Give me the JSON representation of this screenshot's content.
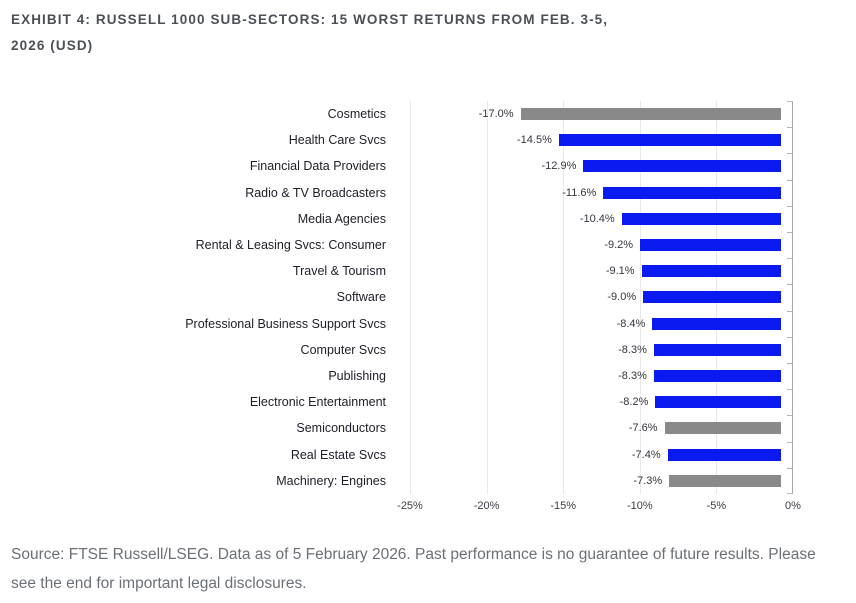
{
  "title": {
    "line1": "EXHIBIT 4: RUSSELL 1000 SUB-SECTORS: 15 WORST RETURNS FROM FEB. 3-5,",
    "line2": "2026 (USD)"
  },
  "source_note": "Source: FTSE Russell/LSEG. Data as of 5 February 2026. Past performance is no guarantee of future results. Please see the end for important legal disclosures.",
  "chart_data": {
    "type": "bar",
    "orientation": "horizontal",
    "title": "EXHIBIT 4: RUSSELL 1000 SUB-SECTORS: 15 WORST RETURNS FROM FEB. 3-5, 2026 (USD)",
    "categories": [
      "Cosmetics",
      "Health Care Svcs",
      "Financial Data Providers",
      "Radio & TV Broadcasters",
      "Media Agencies",
      "Rental & Leasing Svcs: Consumer",
      "Travel & Tourism",
      "Software",
      "Professional Business Support Svcs",
      "Computer Svcs",
      "Publishing",
      "Electronic Entertainment",
      "Semiconductors",
      "Real Estate Svcs",
      "Machinery: Engines"
    ],
    "values": [
      -17.0,
      -14.5,
      -12.9,
      -11.6,
      -10.4,
      -9.2,
      -9.1,
      -9.0,
      -8.4,
      -8.3,
      -8.3,
      -8.2,
      -7.6,
      -7.4,
      -7.3
    ],
    "value_labels": [
      "-17.0%",
      "-14.5%",
      "-12.9%",
      "-11.6%",
      "-10.4%",
      "-9.2%",
      "-9.1%",
      "-9.0%",
      "-8.4%",
      "-8.3%",
      "-8.3%",
      "-8.2%",
      "-7.6%",
      "-7.4%",
      "-7.3%"
    ],
    "bar_colors": [
      "gray",
      "blue",
      "blue",
      "blue",
      "blue",
      "blue",
      "blue",
      "blue",
      "blue",
      "blue",
      "blue",
      "blue",
      "gray",
      "blue",
      "gray"
    ],
    "colors": {
      "blue": "#0b1af0",
      "gray": "#898989"
    },
    "xlim": [
      -25,
      0
    ],
    "x_ticks": [
      "-25%",
      "-20%",
      "-15%",
      "-10%",
      "-5%",
      "0%"
    ],
    "x_tick_values": [
      -25,
      -20,
      -15,
      -10,
      -5,
      0
    ],
    "grid": true,
    "data_labels": true,
    "legend": false
  }
}
